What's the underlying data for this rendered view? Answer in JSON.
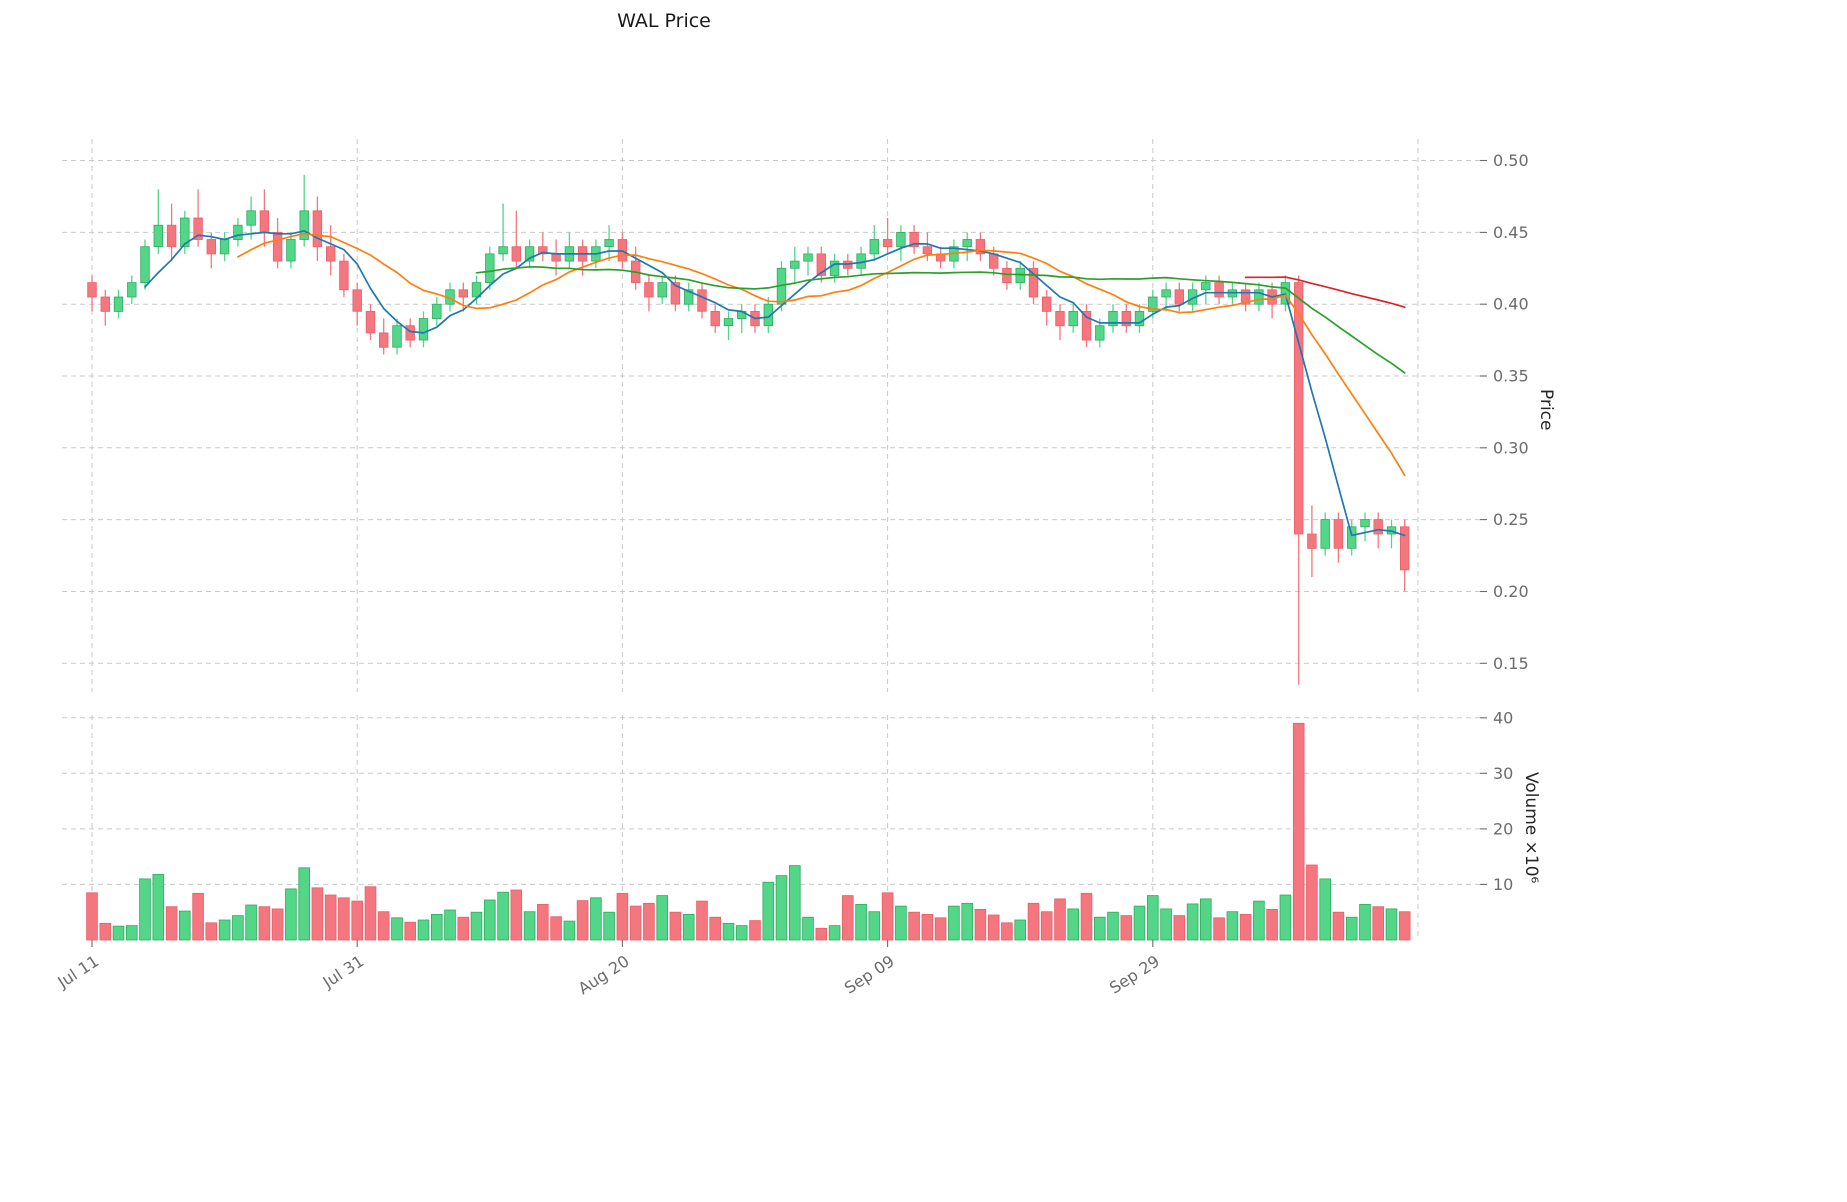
{
  "chart_data": {
    "type": "candlestick",
    "title": "WAL Price",
    "ylabel_price": "Price",
    "ylabel_volume": "Volume ×10⁶",
    "price_ticks": [
      0.15,
      0.2,
      0.25,
      0.3,
      0.35,
      0.4,
      0.45,
      0.5
    ],
    "volume_ticks": [
      10,
      20,
      30,
      40
    ],
    "x_tick_labels": [
      "Jul 11",
      "Jul 31",
      "Aug 20",
      "Sep 09",
      "Sep 29"
    ],
    "x_tick_indices": [
      0,
      20,
      40,
      60,
      80
    ],
    "x_grid_extra_indices": [
      100
    ],
    "price_axis_range": [
      0.13,
      0.515
    ],
    "volume_axis_max_millions": 40.5,
    "grid": true,
    "legend": "none",
    "moving_averages": [
      {
        "label": "MA5",
        "window": 5,
        "color": "#1f77b4"
      },
      {
        "label": "MA12",
        "window": 12,
        "color": "#ff7f0e"
      },
      {
        "label": "MA30",
        "window": 30,
        "color": "#2ca02c"
      },
      {
        "label": "MA88",
        "window": 88,
        "color": "#d62728"
      }
    ],
    "colors": {
      "up": "#53d688",
      "up_edge": "#2fab61",
      "down": "#f4777f",
      "down_edge": "#e85f68",
      "grid": "#c9c9c9",
      "tick_text": "#6b6b6b",
      "title_text": "#1a1a1a"
    },
    "candle_fields": [
      "date",
      "open",
      "high",
      "low",
      "close",
      "volume_millions"
    ],
    "candles": [
      [
        "Jul 11",
        0.415,
        0.42,
        0.395,
        0.405,
        8.5
      ],
      [
        "Jul 12",
        0.405,
        0.41,
        0.385,
        0.395,
        3.0
      ],
      [
        "Jul 13",
        0.395,
        0.41,
        0.39,
        0.405,
        2.5
      ],
      [
        "Jul 14",
        0.405,
        0.42,
        0.4,
        0.415,
        2.6
      ],
      [
        "Jul 15",
        0.415,
        0.445,
        0.41,
        0.44,
        11.0
      ],
      [
        "Jul 16",
        0.44,
        0.48,
        0.435,
        0.455,
        11.8
      ],
      [
        "Jul 17",
        0.455,
        0.47,
        0.43,
        0.44,
        6.0
      ],
      [
        "Jul 18",
        0.44,
        0.465,
        0.435,
        0.46,
        5.2
      ],
      [
        "Jul 19",
        0.46,
        0.48,
        0.44,
        0.445,
        8.4
      ],
      [
        "Jul 20",
        0.445,
        0.45,
        0.425,
        0.435,
        3.1
      ],
      [
        "Jul 21",
        0.435,
        0.45,
        0.43,
        0.445,
        3.6
      ],
      [
        "Jul 22",
        0.445,
        0.46,
        0.44,
        0.455,
        4.4
      ],
      [
        "Jul 23",
        0.455,
        0.475,
        0.445,
        0.465,
        6.3
      ],
      [
        "Jul 24",
        0.465,
        0.48,
        0.44,
        0.45,
        6.0
      ],
      [
        "Jul 25",
        0.45,
        0.46,
        0.425,
        0.43,
        5.6
      ],
      [
        "Jul 26",
        0.43,
        0.45,
        0.425,
        0.445,
        9.2
      ],
      [
        "Jul 27",
        0.445,
        0.49,
        0.44,
        0.465,
        13.0
      ],
      [
        "Jul 28",
        0.465,
        0.475,
        0.43,
        0.44,
        9.4
      ],
      [
        "Jul 29",
        0.44,
        0.455,
        0.42,
        0.43,
        8.1
      ],
      [
        "Jul 30",
        0.43,
        0.435,
        0.405,
        0.41,
        7.6
      ],
      [
        "Jul 31",
        0.41,
        0.415,
        0.385,
        0.395,
        7.0
      ],
      [
        "Aug 01",
        0.395,
        0.4,
        0.375,
        0.38,
        9.6
      ],
      [
        "Aug 02",
        0.38,
        0.39,
        0.365,
        0.37,
        5.1
      ],
      [
        "Aug 03",
        0.37,
        0.39,
        0.365,
        0.385,
        4.0
      ],
      [
        "Aug 04",
        0.385,
        0.39,
        0.37,
        0.375,
        3.2
      ],
      [
        "Aug 05",
        0.375,
        0.395,
        0.37,
        0.39,
        3.6
      ],
      [
        "Aug 06",
        0.39,
        0.405,
        0.385,
        0.4,
        4.6
      ],
      [
        "Aug 07",
        0.4,
        0.415,
        0.395,
        0.41,
        5.4
      ],
      [
        "Aug 08",
        0.41,
        0.415,
        0.395,
        0.405,
        4.1
      ],
      [
        "Aug 09",
        0.405,
        0.42,
        0.4,
        0.415,
        5.0
      ],
      [
        "Aug 10",
        0.415,
        0.44,
        0.41,
        0.435,
        7.2
      ],
      [
        "Aug 11",
        0.435,
        0.47,
        0.43,
        0.44,
        8.6
      ],
      [
        "Aug 12",
        0.44,
        0.465,
        0.425,
        0.43,
        9.0
      ],
      [
        "Aug 13",
        0.43,
        0.445,
        0.425,
        0.44,
        5.1
      ],
      [
        "Aug 14",
        0.44,
        0.45,
        0.43,
        0.435,
        6.4
      ],
      [
        "Aug 15",
        0.435,
        0.445,
        0.42,
        0.43,
        4.2
      ],
      [
        "Aug 16",
        0.43,
        0.45,
        0.425,
        0.44,
        3.4
      ],
      [
        "Aug 17",
        0.44,
        0.445,
        0.42,
        0.43,
        7.1
      ],
      [
        "Aug 18",
        0.43,
        0.445,
        0.425,
        0.44,
        7.6
      ],
      [
        "Aug 19",
        0.44,
        0.455,
        0.43,
        0.445,
        5.0
      ],
      [
        "Aug 20",
        0.445,
        0.45,
        0.425,
        0.43,
        8.4
      ],
      [
        "Aug 21",
        0.43,
        0.44,
        0.41,
        0.415,
        6.1
      ],
      [
        "Aug 22",
        0.415,
        0.42,
        0.395,
        0.405,
        6.6
      ],
      [
        "Aug 23",
        0.405,
        0.42,
        0.4,
        0.415,
        8.0
      ],
      [
        "Aug 24",
        0.415,
        0.42,
        0.395,
        0.4,
        5.0
      ],
      [
        "Aug 25",
        0.4,
        0.415,
        0.395,
        0.41,
        4.6
      ],
      [
        "Aug 26",
        0.41,
        0.415,
        0.39,
        0.395,
        7.0
      ],
      [
        "Aug 27",
        0.395,
        0.4,
        0.38,
        0.385,
        4.1
      ],
      [
        "Aug 28",
        0.385,
        0.395,
        0.375,
        0.39,
        3.0
      ],
      [
        "Aug 29",
        0.39,
        0.4,
        0.38,
        0.395,
        2.6
      ],
      [
        "Aug 30",
        0.395,
        0.4,
        0.38,
        0.385,
        3.5
      ],
      [
        "Aug 31",
        0.385,
        0.405,
        0.38,
        0.4,
        10.4
      ],
      [
        "Sep 01",
        0.4,
        0.43,
        0.395,
        0.425,
        11.6
      ],
      [
        "Sep 02",
        0.425,
        0.44,
        0.415,
        0.43,
        13.4
      ],
      [
        "Sep 03",
        0.43,
        0.44,
        0.42,
        0.435,
        4.1
      ],
      [
        "Sep 04",
        0.435,
        0.44,
        0.415,
        0.42,
        2.1
      ],
      [
        "Sep 05",
        0.42,
        0.435,
        0.415,
        0.43,
        2.6
      ],
      [
        "Sep 06",
        0.43,
        0.435,
        0.42,
        0.425,
        8.0
      ],
      [
        "Sep 07",
        0.425,
        0.44,
        0.42,
        0.435,
        6.4
      ],
      [
        "Sep 08",
        0.435,
        0.455,
        0.43,
        0.445,
        5.1
      ],
      [
        "Sep 09",
        0.445,
        0.46,
        0.435,
        0.44,
        8.5
      ],
      [
        "Sep 10",
        0.44,
        0.455,
        0.43,
        0.45,
        6.1
      ],
      [
        "Sep 11",
        0.45,
        0.455,
        0.435,
        0.44,
        5.0
      ],
      [
        "Sep 12",
        0.44,
        0.45,
        0.43,
        0.435,
        4.6
      ],
      [
        "Sep 13",
        0.435,
        0.44,
        0.425,
        0.43,
        4.0
      ],
      [
        "Sep 14",
        0.43,
        0.445,
        0.425,
        0.44,
        6.1
      ],
      [
        "Sep 15",
        0.44,
        0.45,
        0.43,
        0.445,
        6.6
      ],
      [
        "Sep 16",
        0.445,
        0.45,
        0.43,
        0.435,
        5.5
      ],
      [
        "Sep 17",
        0.435,
        0.44,
        0.42,
        0.425,
        4.5
      ],
      [
        "Sep 18",
        0.425,
        0.43,
        0.41,
        0.415,
        3.1
      ],
      [
        "Sep 19",
        0.415,
        0.43,
        0.41,
        0.425,
        3.6
      ],
      [
        "Sep 20",
        0.425,
        0.43,
        0.4,
        0.405,
        6.6
      ],
      [
        "Sep 21",
        0.405,
        0.41,
        0.385,
        0.395,
        5.1
      ],
      [
        "Sep 22",
        0.395,
        0.4,
        0.375,
        0.385,
        7.4
      ],
      [
        "Sep 23",
        0.385,
        0.4,
        0.38,
        0.395,
        5.6
      ],
      [
        "Sep 24",
        0.395,
        0.4,
        0.37,
        0.375,
        8.4
      ],
      [
        "Sep 25",
        0.375,
        0.39,
        0.37,
        0.385,
        4.1
      ],
      [
        "Sep 26",
        0.385,
        0.4,
        0.38,
        0.395,
        5.0
      ],
      [
        "Sep 27",
        0.395,
        0.4,
        0.38,
        0.385,
        4.4
      ],
      [
        "Sep 28",
        0.385,
        0.4,
        0.38,
        0.395,
        6.1
      ],
      [
        "Sep 29",
        0.395,
        0.41,
        0.39,
        0.405,
        8.0
      ],
      [
        "Sep 30",
        0.405,
        0.415,
        0.395,
        0.41,
        5.6
      ],
      [
        "Oct 01",
        0.41,
        0.415,
        0.395,
        0.4,
        4.4
      ],
      [
        "Oct 02",
        0.4,
        0.415,
        0.395,
        0.41,
        6.5
      ],
      [
        "Oct 03",
        0.41,
        0.42,
        0.4,
        0.415,
        7.4
      ],
      [
        "Oct 04",
        0.415,
        0.42,
        0.4,
        0.405,
        4.0
      ],
      [
        "Oct 05",
        0.405,
        0.415,
        0.4,
        0.41,
        5.1
      ],
      [
        "Oct 06",
        0.41,
        0.415,
        0.395,
        0.4,
        4.6
      ],
      [
        "Oct 07",
        0.4,
        0.415,
        0.395,
        0.41,
        7.0
      ],
      [
        "Oct 08",
        0.41,
        0.415,
        0.39,
        0.4,
        5.5
      ],
      [
        "Oct 09",
        0.4,
        0.42,
        0.395,
        0.415,
        8.1
      ],
      [
        "Oct 10",
        0.415,
        0.42,
        0.135,
        0.24,
        39.0
      ],
      [
        "Oct 11",
        0.24,
        0.26,
        0.21,
        0.23,
        13.5
      ],
      [
        "Oct 12",
        0.23,
        0.255,
        0.225,
        0.25,
        11.0
      ],
      [
        "Oct 13",
        0.25,
        0.255,
        0.22,
        0.23,
        5.0
      ],
      [
        "Oct 14",
        0.23,
        0.25,
        0.225,
        0.245,
        4.1
      ],
      [
        "Oct 15",
        0.245,
        0.255,
        0.235,
        0.25,
        6.4
      ],
      [
        "Oct 16",
        0.25,
        0.255,
        0.23,
        0.24,
        6.0
      ],
      [
        "Oct 17",
        0.24,
        0.25,
        0.23,
        0.245,
        5.6
      ],
      [
        "Oct 18",
        0.245,
        0.25,
        0.2,
        0.215,
        5.1
      ]
    ]
  }
}
